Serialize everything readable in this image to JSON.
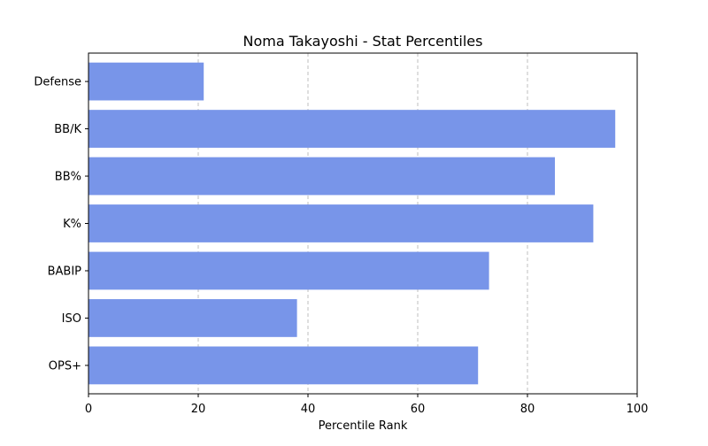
{
  "chart_data": {
    "type": "bar",
    "orientation": "horizontal",
    "title": "Noma Takayoshi - Stat Percentiles",
    "xlabel": "Percentile Rank",
    "ylabel": "",
    "xlim": [
      0,
      100
    ],
    "xticks": [
      0,
      20,
      40,
      60,
      80,
      100
    ],
    "grid": "x-dashed",
    "categories": [
      "OPS+",
      "ISO",
      "BABIP",
      "K%",
      "BB%",
      "BB/K",
      "Defense"
    ],
    "values": [
      71,
      38,
      73,
      92,
      85,
      96,
      21
    ],
    "bar_color": "#7895e9"
  }
}
